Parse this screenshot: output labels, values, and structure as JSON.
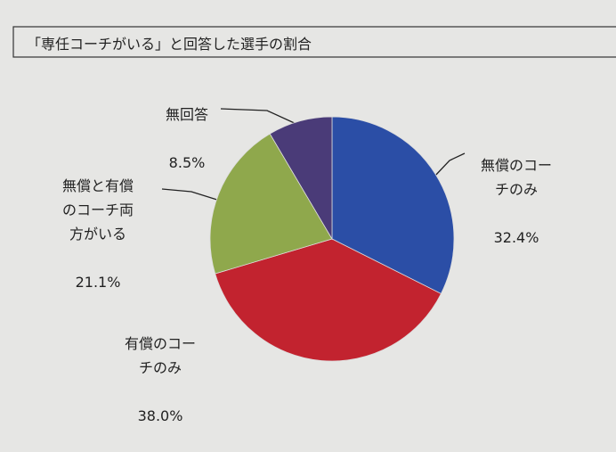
{
  "chart_data": {
    "type": "pie",
    "title": "「専任コーチがいる」と回答した選手の割合",
    "categories": [
      "無償のコー\nチのみ",
      "有償のコー\nチのみ",
      "無償と有償\nのコーチ両\n方がいる",
      "無回答"
    ],
    "values": [
      32.4,
      38.0,
      21.1,
      8.5
    ],
    "value_labels": [
      "32.4%",
      "38.0%",
      "21.1%",
      "8.5%"
    ],
    "colors": [
      "#2b4ea6",
      "#c2232f",
      "#8fa84c",
      "#4a3b78"
    ]
  }
}
